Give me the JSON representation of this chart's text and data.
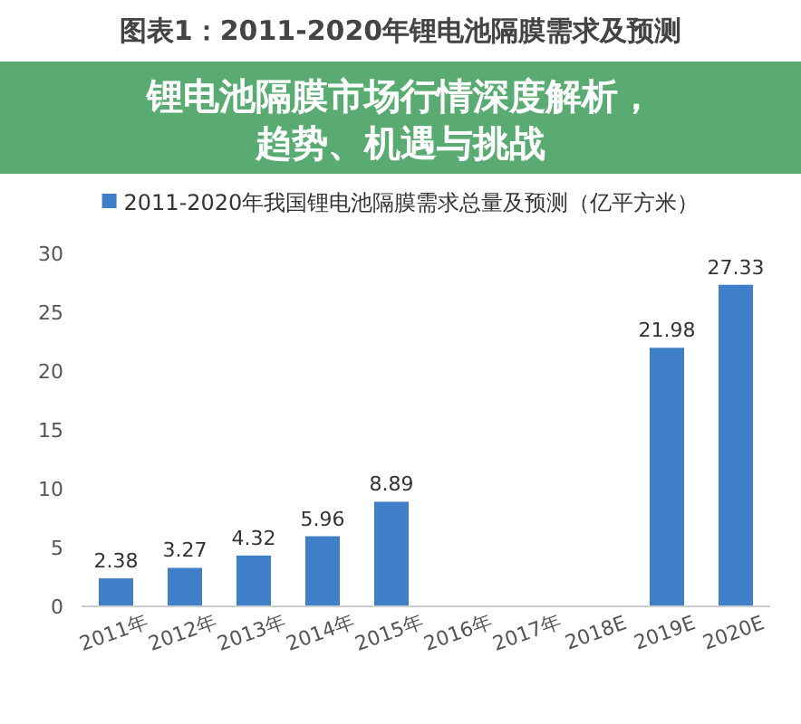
{
  "chart_data": {
    "type": "bar",
    "title": "图表1：2011-2020年锂电池隔膜需求及预测",
    "subtitle": "锂电池隔膜市场行情深度解析，趋势、机遇与挑战",
    "categories": [
      "2011年",
      "2012年",
      "2013年",
      "2014年",
      "2015年",
      "2016年",
      "2017年",
      "2018E",
      "2019E",
      "2020E"
    ],
    "series": [
      {
        "name": "2011-2020年我国锂电池隔膜需求总量及预测（亿平方米）",
        "color": "#3f7fc8",
        "values": [
          2.38,
          3.27,
          4.32,
          5.96,
          8.89,
          null,
          null,
          null,
          21.98,
          27.33
        ]
      }
    ],
    "ylim": [
      0,
      30
    ],
    "yticks": [
      0,
      5,
      10,
      15,
      20,
      25,
      30
    ],
    "data_labels": true,
    "legend": "top"
  }
}
